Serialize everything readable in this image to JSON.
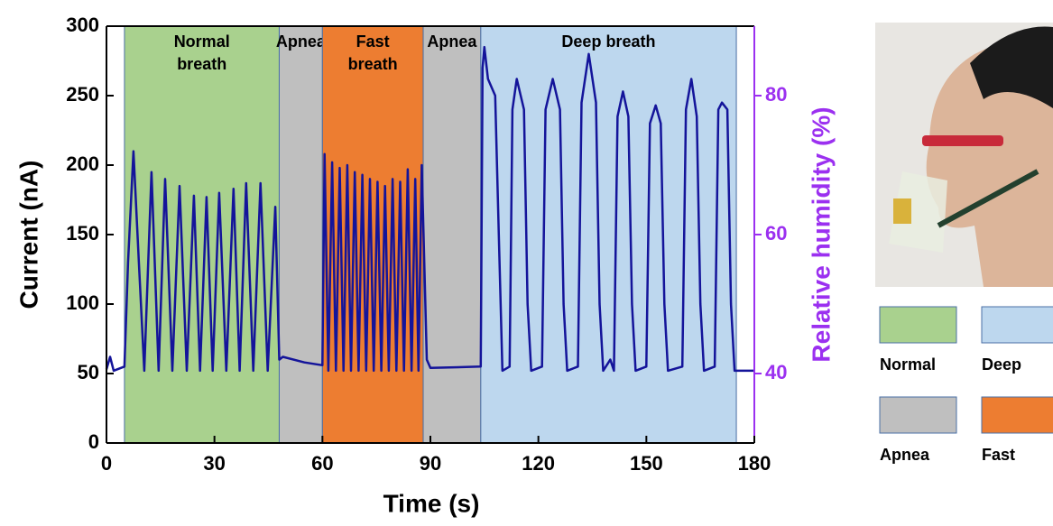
{
  "chart_data": {
    "type": "line",
    "xlabel": "Time (s)",
    "ylabel": "Current (nA)",
    "y2label": "Relative humidity (%)",
    "xlim": [
      0,
      180
    ],
    "xticks": [
      0,
      30,
      60,
      90,
      120,
      150,
      180
    ],
    "ylim": [
      0,
      300
    ],
    "yticks": [
      0,
      50,
      100,
      150,
      200,
      250,
      300
    ],
    "y2lim": [
      30,
      90
    ],
    "y2ticks": [
      40,
      60,
      80
    ],
    "y2color": "#9b30f0",
    "color": "#14149a",
    "regions": [
      {
        "label": "Normal breath",
        "start": 5,
        "end": 48,
        "color": "#a9d18e"
      },
      {
        "label": "Apnea",
        "start": 48,
        "end": 60,
        "color": "#bfbfbf"
      },
      {
        "label": "Fast breath",
        "start": 60,
        "end": 88,
        "color": "#ed7d31"
      },
      {
        "label": "Apnea",
        "start": 88,
        "end": 104,
        "color": "#bfbfbf"
      },
      {
        "label": "Deep breath",
        "start": 104,
        "end": 175,
        "color": "#bdd7ee"
      }
    ],
    "legend": [
      {
        "name": "Normal",
        "color": "#a9d18e"
      },
      {
        "name": "Deep",
        "color": "#bdd7ee"
      },
      {
        "name": "Apnea",
        "color": "#bfbfbf"
      },
      {
        "name": "Fast",
        "color": "#ed7d31"
      }
    ],
    "x": [
      0,
      1,
      2,
      5,
      6,
      7.5,
      9,
      10.5,
      12.5,
      14.5,
      16.3,
      18.3,
      20.3,
      22.3,
      24.3,
      26,
      27.8,
      29.5,
      31.3,
      33.3,
      35.3,
      37,
      38.8,
      40.8,
      42.8,
      44.8,
      46.9,
      48,
      49,
      55,
      60,
      60.6,
      61.65,
      62.7,
      63.75,
      64.8,
      65.85,
      66.9,
      67.95,
      69,
      70.05,
      71.1,
      72.15,
      73.2,
      74.25,
      75.3,
      76.35,
      77.4,
      78.45,
      79.5,
      80.55,
      81.6,
      82.65,
      83.7,
      84.75,
      85.8,
      86.7,
      87.6,
      89,
      90,
      104,
      104.5,
      105,
      106,
      108,
      109,
      110,
      112,
      112.8,
      114,
      116,
      117,
      118,
      121,
      122,
      124,
      126,
      127,
      128,
      131,
      132,
      134,
      136,
      137,
      138,
      140,
      141,
      142,
      143.5,
      145,
      146,
      147,
      150,
      151,
      152.6,
      154,
      155,
      156,
      160,
      161,
      162.5,
      164,
      165,
      166,
      169,
      170,
      171,
      172.5,
      173.5,
      174.5,
      180
    ],
    "values": [
      53,
      62,
      52,
      55,
      130,
      210,
      130,
      52,
      195,
      52,
      190,
      52,
      185,
      52,
      178,
      52,
      177,
      52,
      180,
      52,
      183,
      52,
      187,
      52,
      187,
      52,
      170,
      60,
      62,
      58,
      56,
      208,
      52,
      202,
      52,
      198,
      52,
      200,
      52,
      195,
      52,
      193,
      52,
      190,
      52,
      188,
      52,
      185,
      52,
      190,
      52,
      188,
      52,
      197,
      52,
      190,
      52,
      200,
      60,
      54,
      55,
      270,
      285,
      262,
      250,
      150,
      52,
      55,
      240,
      262,
      240,
      100,
      52,
      55,
      240,
      262,
      240,
      100,
      52,
      55,
      245,
      280,
      245,
      100,
      52,
      60,
      52,
      235,
      253,
      235,
      100,
      52,
      55,
      230,
      243,
      230,
      100,
      52,
      55,
      240,
      262,
      235,
      100,
      52,
      55,
      240,
      245,
      240,
      100,
      52,
      52
    ]
  }
}
